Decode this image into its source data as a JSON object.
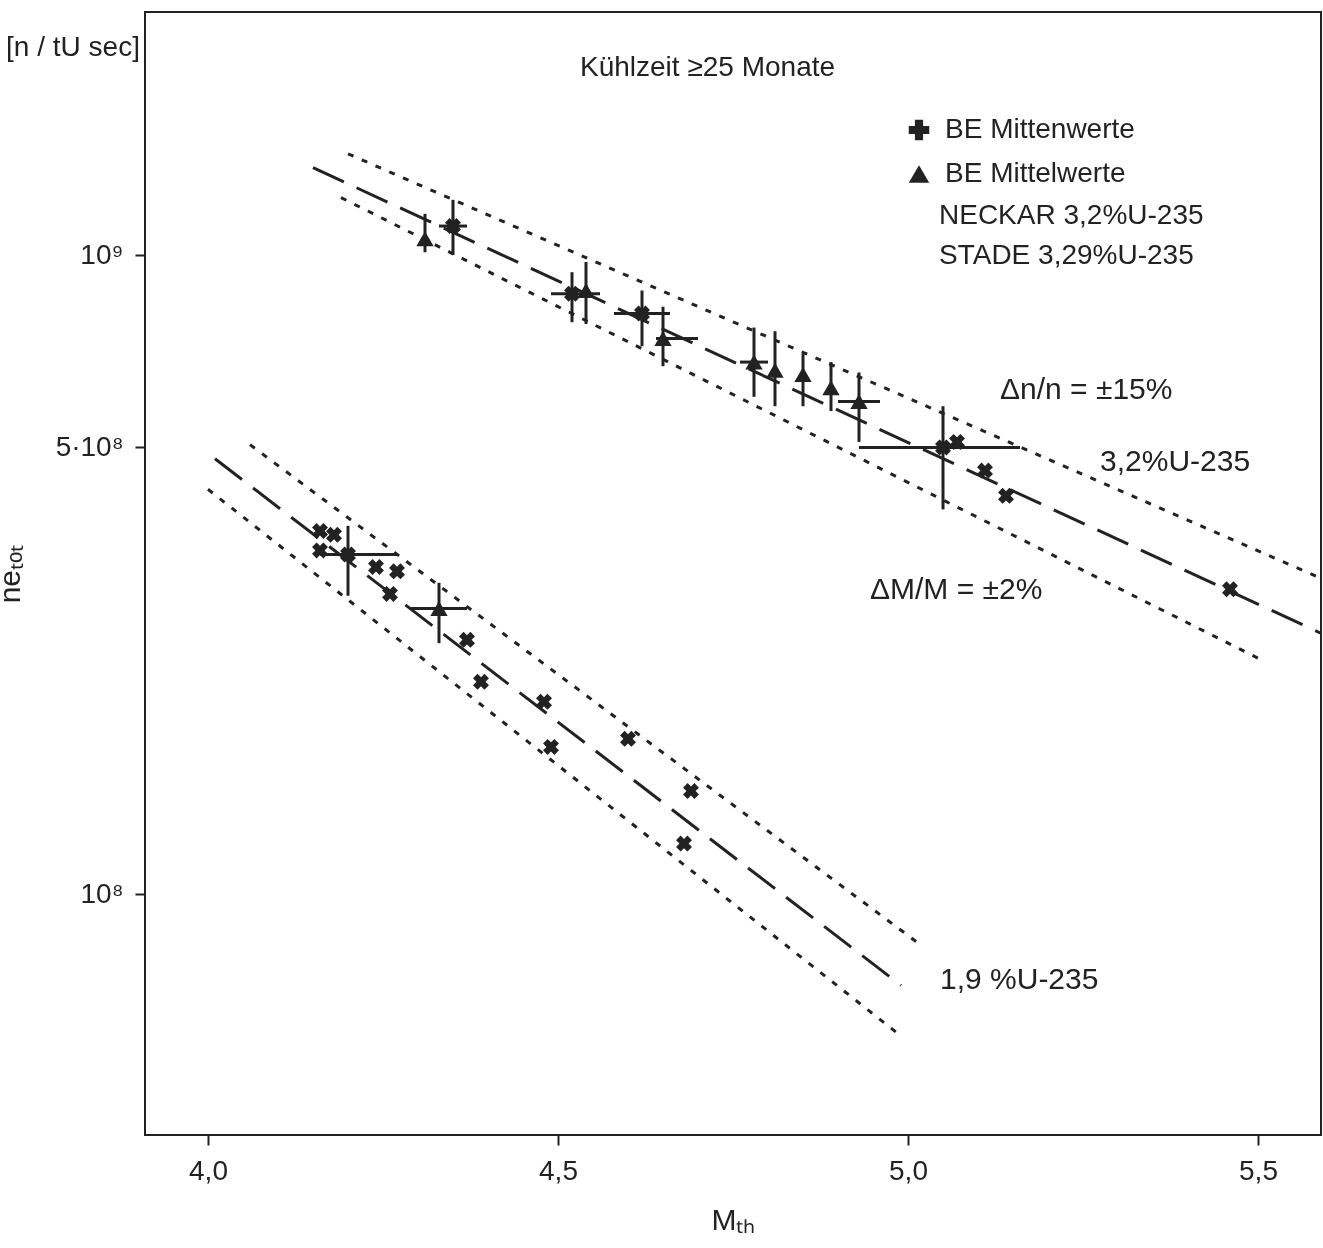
{
  "chart_data": {
    "type": "scatter",
    "xlabel": "Mₜₕ",
    "ylabel": "neₜₒₜ",
    "log": "y",
    "grid": false,
    "legend": "top right",
    "xlim": [
      3.91,
      5.59
    ],
    "ylim": [
      42000000,
      2400000000
    ],
    "xticks": [
      {
        "value": 4,
        "label": "4,0"
      },
      {
        "value": 4.5,
        "label": "4,5"
      },
      {
        "value": 5,
        "label": "5,0"
      },
      {
        "value": 5.5,
        "label": "5,5"
      }
    ],
    "yticks": [
      {
        "value": 100000000,
        "label": "10⁸"
      },
      {
        "value": 500000000,
        "label": "5·10⁸"
      },
      {
        "value": 1000000000,
        "label": "10⁹"
      }
    ],
    "annotations": [
      "Kühlzeit ≥25 Monate",
      "[n / tU sec]",
      "NECKAR 3,2%U-235",
      "STADE 3,29%U-235",
      "Δn/n = ±15%",
      "ΔM/M = ±2%",
      "3,2%U-235",
      "1,9 %U-235"
    ],
    "series": [
      {
        "name": "BE Mittenwerte",
        "marker": "cross",
        "color": "#222222",
        "x": [
          5.07,
          5.11,
          5.14,
          5.46,
          4.16,
          4.18,
          4.16,
          4.24,
          4.27,
          4.26,
          4.37,
          4.39,
          4.48,
          4.49,
          4.6,
          4.69,
          4.68
        ],
        "values": [
          510000000.0,
          460000000.0,
          420000000.0,
          300000000.0,
          370000000.0,
          365000000.0,
          345000000.0,
          325000000.0,
          320000000.0,
          295000000.0,
          250000000.0,
          215000000.0,
          200000000.0,
          170000000.0,
          175000000.0,
          145000000.0,
          120000000.0
        ]
      },
      {
        "name": "BE Mittelwerte",
        "marker": "triangle",
        "color": "#222222",
        "x": [
          4.31,
          4.54,
          4.65,
          4.78,
          4.81,
          4.85,
          4.89,
          4.93,
          4.33
        ],
        "values": [
          1060000000.0,
          880000000.0,
          740000000.0,
          680000000.0,
          660000000.0,
          650000000.0,
          620000000.0,
          590000000.0,
          280000000.0
        ],
        "errors": [
          [
            1010000000.0,
            1160000000.0
          ],
          [
            780000000.0,
            975000000.0
          ],
          [
            670000000.0,
            830000000.0
          ],
          [
            600000000.0,
            770000000.0
          ],
          [
            580000000.0,
            760000000.0
          ],
          [
            580000000.0,
            700000000.0
          ],
          [
            570000000.0,
            680000000.0
          ],
          [
            510000000.0,
            655000000.0
          ],
          [
            247000000.0,
            307000000.0
          ]
        ],
        "xerrors": [
          null,
          null,
          [
            4.64,
            4.7
          ],
          [
            4.76,
            4.8
          ],
          null,
          null,
          null,
          [
            4.9,
            4.96
          ],
          [
            4.29,
            4.37
          ]
        ]
      },
      {
        "marker": "cross",
        "color": "#222222",
        "x": [
          4.35,
          4.52,
          4.62,
          5.05,
          4.2
        ],
        "values": [
          1110000000.0,
          870000000.0,
          810000000.0,
          500000000.0,
          340000000.0
        ],
        "errors": [
          [
            1000000000.0,
            1220000000.0
          ],
          [
            785000000.0,
            940000000.0
          ],
          [
            720000000.0,
            880000000.0
          ],
          [
            400000000.0,
            580000000.0
          ],
          [
            293000000.0,
            377000000.0
          ]
        ],
        "xerrors": [
          [
            4.33,
            4.37
          ],
          [
            4.49,
            4.56
          ],
          [
            4.58,
            4.66
          ],
          [
            4.93,
            5.16
          ],
          [
            4.16,
            4.27
          ]
        ]
      },
      {
        "type": "line",
        "line_style": "dashed",
        "color": "#222222",
        "x": [
          4.15,
          5.59
        ],
        "values": [
          1370000000.0,
          256000000.0
        ]
      },
      {
        "type": "line",
        "line_style": "dotted",
        "color": "#222222",
        "x": [
          4.2,
          5.59
        ],
        "values": [
          1440000000.0,
          312000000.0
        ]
      },
      {
        "type": "line",
        "line_style": "dotted",
        "color": "#222222",
        "x": [
          4.19,
          5.5
        ],
        "values": [
          1230000000.0,
          234000000.0
        ]
      },
      {
        "type": "line",
        "line_style": "dashed",
        "color": "#222222",
        "x": [
          4.01,
          4.99
        ],
        "values": [
          480000000.0,
          72000000.0
        ]
      },
      {
        "type": "line",
        "line_style": "dotted",
        "color": "#222222",
        "x": [
          4.06,
          5.02
        ],
        "values": [
          505000000.0,
          83000000.0
        ]
      },
      {
        "type": "line",
        "line_style": "dotted",
        "color": "#222222",
        "x": [
          4.0,
          4.99
        ],
        "values": [
          430000000.0,
          60000000.0
        ]
      }
    ]
  }
}
